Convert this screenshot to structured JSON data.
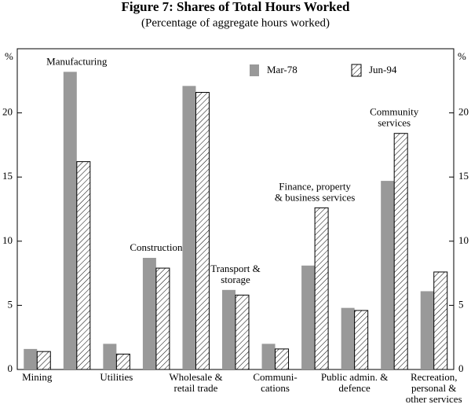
{
  "chart_data": {
    "type": "bar",
    "title": "Figure 7: Shares of Total Hours Worked",
    "subtitle": "(Percentage of aggregate hours worked)",
    "y_unit": "%",
    "categories": [
      [
        "Mining"
      ],
      [
        "Manufacturing"
      ],
      [
        "Utilities"
      ],
      [
        "Construction"
      ],
      [
        "Wholesale &",
        "retail trade"
      ],
      [
        "Transport &",
        "storage"
      ],
      [
        "Communi-",
        "cations"
      ],
      [
        "Finance, property",
        "& business services"
      ],
      [
        "Public admin. &",
        "defence"
      ],
      [
        "Community",
        "services"
      ],
      [
        "Recreation,",
        "personal &",
        "other services"
      ]
    ],
    "series": [
      {
        "name": "Mar-78",
        "color": "#999999",
        "values": [
          1.6,
          23.2,
          2.0,
          8.7,
          22.1,
          6.2,
          2.0,
          8.1,
          4.8,
          14.7,
          6.1
        ]
      },
      {
        "name": "Jun-94",
        "color": "hatch",
        "values": [
          1.4,
          16.2,
          1.2,
          7.9,
          21.6,
          5.8,
          1.6,
          12.6,
          4.6,
          18.4,
          7.6
        ]
      }
    ],
    "ylim": [
      0,
      25
    ],
    "yticks": [
      0,
      5,
      10,
      15,
      20
    ]
  }
}
